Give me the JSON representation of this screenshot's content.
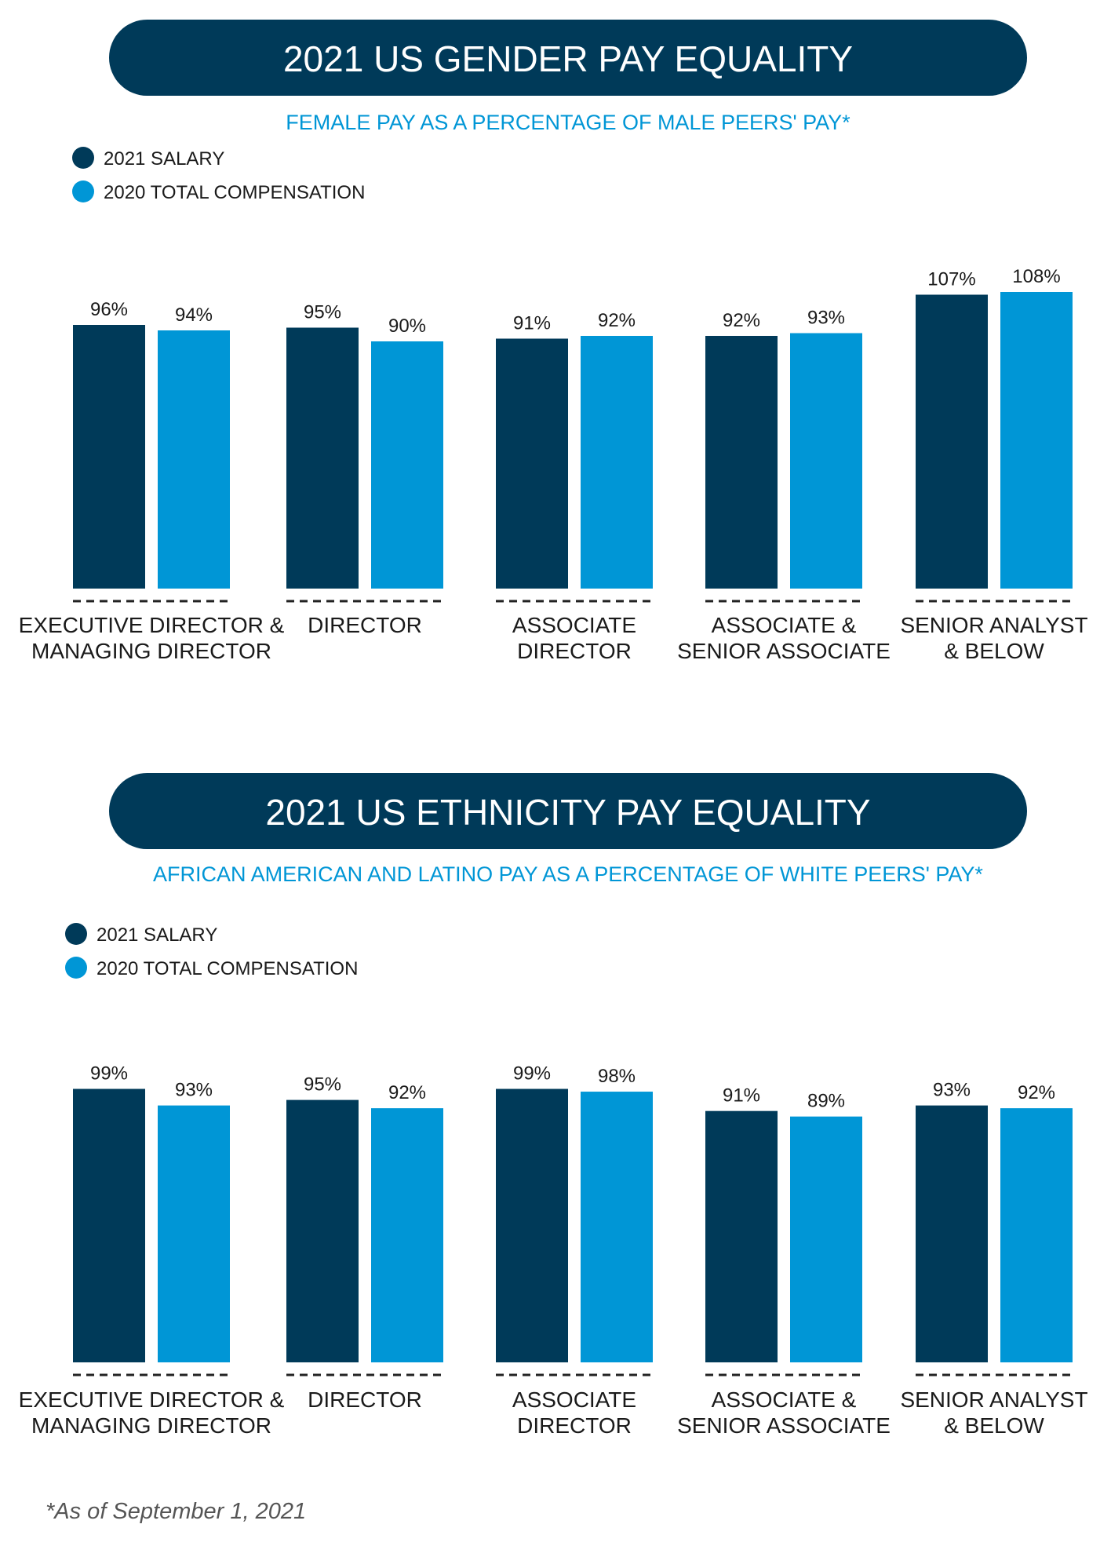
{
  "colors": {
    "salary": "#003A59",
    "total_comp": "#0096D6",
    "title_bg": "#003A59",
    "subtitle": "#0096D6",
    "text": "#1a1a1a",
    "footnote": "#555555"
  },
  "legend": {
    "salary": "2021 SALARY",
    "total_comp": "2020 TOTAL COMPENSATION"
  },
  "footnote": "*As of September 1, 2021",
  "chart_data": [
    {
      "type": "bar",
      "title": "2021 US GENDER PAY EQUALITY",
      "subtitle": "FEMALE PAY AS A PERCENTAGE OF MALE PEERS' PAY*",
      "categories": [
        [
          "EXECUTIVE DIRECTOR &",
          "MANAGING DIRECTOR"
        ],
        [
          "DIRECTOR"
        ],
        [
          "ASSOCIATE",
          "DIRECTOR"
        ],
        [
          "ASSOCIATE &",
          "SENIOR ASSOCIATE"
        ],
        [
          "SENIOR ANALYST",
          "& BELOW"
        ]
      ],
      "series": [
        {
          "name": "2021 SALARY",
          "values": [
            96,
            95,
            91,
            92,
            107
          ]
        },
        {
          "name": "2020 TOTAL COMPENSATION",
          "values": [
            94,
            90,
            92,
            93,
            108
          ]
        }
      ],
      "value_labels": [
        [
          "96%",
          "95%",
          "91%",
          "92%",
          "107%"
        ],
        [
          "94%",
          "90%",
          "92%",
          "93%",
          "108%"
        ]
      ],
      "legend_position": "top-left",
      "grid": false
    },
    {
      "type": "bar",
      "title": "2021 US ETHNICITY PAY EQUALITY",
      "subtitle": "AFRICAN AMERICAN AND LATINO PAY AS A PERCENTAGE OF WHITE PEERS' PAY*",
      "categories": [
        [
          "EXECUTIVE DIRECTOR &",
          "MANAGING DIRECTOR"
        ],
        [
          "DIRECTOR"
        ],
        [
          "ASSOCIATE",
          "DIRECTOR"
        ],
        [
          "ASSOCIATE &",
          "SENIOR ASSOCIATE"
        ],
        [
          "SENIOR ANALYST",
          "& BELOW"
        ]
      ],
      "series": [
        {
          "name": "2021 SALARY",
          "values": [
            99,
            95,
            99,
            91,
            93
          ]
        },
        {
          "name": "2020 TOTAL COMPENSATION",
          "values": [
            93,
            92,
            98,
            89,
            92
          ]
        }
      ],
      "value_labels": [
        [
          "99%",
          "95%",
          "99%",
          "91%",
          "93%"
        ],
        [
          "93%",
          "92%",
          "98%",
          "89%",
          "92%"
        ]
      ],
      "legend_position": "top-left",
      "grid": false
    }
  ]
}
